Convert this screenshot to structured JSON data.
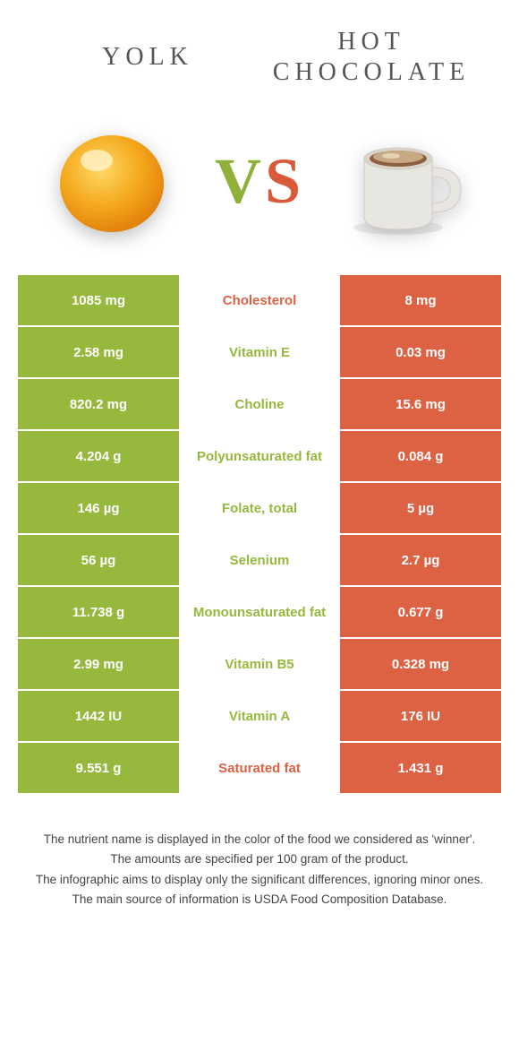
{
  "header": {
    "left_title": "Yolk",
    "right_title": "Hot chocolate"
  },
  "vs": {
    "v": "V",
    "s": "S"
  },
  "colors": {
    "green": "#95b83d",
    "orange": "#dd6244",
    "text_gray": "#555555",
    "background": "#ffffff"
  },
  "table": {
    "rows": [
      {
        "left": "1085 mg",
        "label": "Cholesterol",
        "right": "8 mg",
        "winner": "left",
        "label_color": "orange"
      },
      {
        "left": "2.58 mg",
        "label": "Vitamin E",
        "right": "0.03 mg",
        "winner": "left",
        "label_color": "green"
      },
      {
        "left": "820.2 mg",
        "label": "Choline",
        "right": "15.6 mg",
        "winner": "left",
        "label_color": "green"
      },
      {
        "left": "4.204 g",
        "label": "Polyunsaturated fat",
        "right": "0.084 g",
        "winner": "left",
        "label_color": "green"
      },
      {
        "left": "146 µg",
        "label": "Folate, total",
        "right": "5 µg",
        "winner": "left",
        "label_color": "green"
      },
      {
        "left": "56 µg",
        "label": "Selenium",
        "right": "2.7 µg",
        "winner": "left",
        "label_color": "green"
      },
      {
        "left": "11.738 g",
        "label": "Monounsaturated fat",
        "right": "0.677 g",
        "winner": "left",
        "label_color": "green"
      },
      {
        "left": "2.99 mg",
        "label": "Vitamin B5",
        "right": "0.328 mg",
        "winner": "left",
        "label_color": "green"
      },
      {
        "left": "1442 IU",
        "label": "Vitamin A",
        "right": "176 IU",
        "winner": "left",
        "label_color": "green"
      },
      {
        "left": "9.551 g",
        "label": "Saturated fat",
        "right": "1.431 g",
        "winner": "left",
        "label_color": "orange"
      }
    ]
  },
  "footnotes": [
    "The nutrient name is displayed in the color of the food we considered as 'winner'.",
    "The amounts are specified per 100 gram of the product.",
    "The infographic aims to display only the significant differences, ignoring minor ones.",
    "The main source of information is USDA Food Composition Database."
  ]
}
